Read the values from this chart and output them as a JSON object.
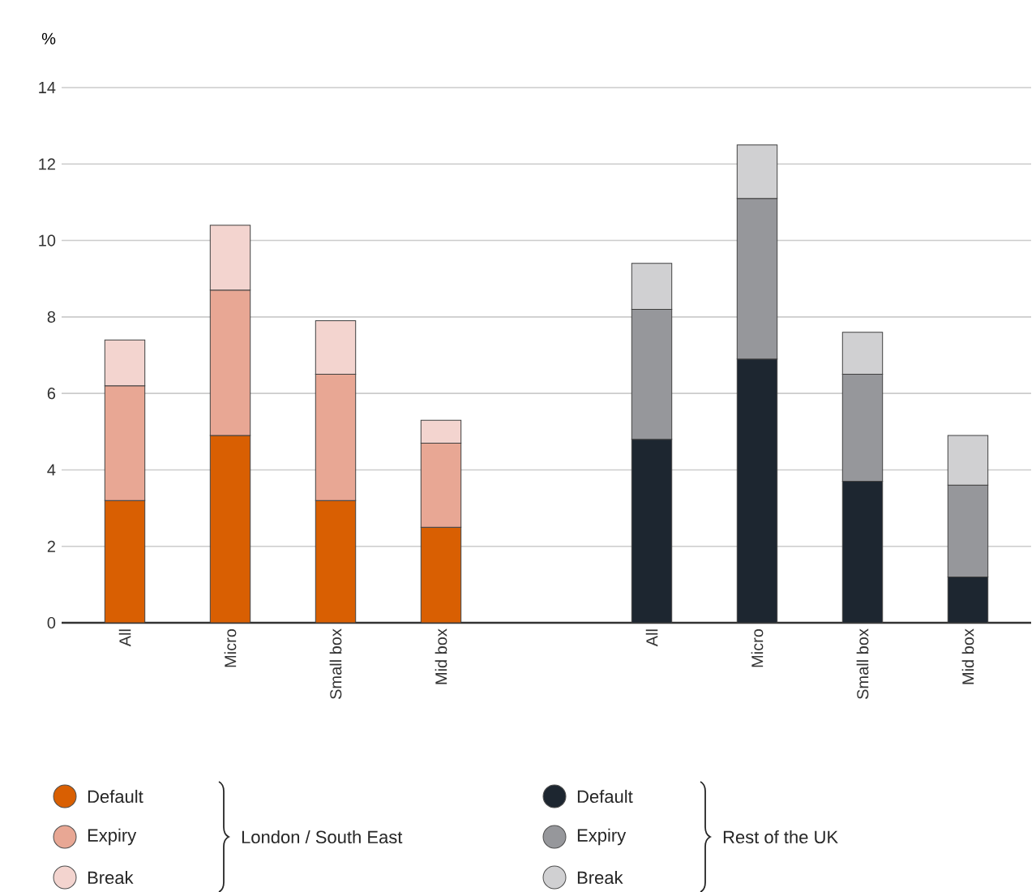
{
  "chart_data": {
    "type": "bar",
    "stacked": true,
    "ylabel": "%",
    "categories": [
      "All",
      "Micro",
      "Small box",
      "Mid box",
      null,
      "All",
      "Micro",
      "Small box",
      "Mid box"
    ],
    "series": [
      {
        "name": "Default",
        "color": "#d95f02",
        "values": [
          3.2,
          4.9,
          3.2,
          2.5,
          null,
          null,
          null,
          null,
          null
        ]
      },
      {
        "name": "Expiry",
        "color": "#e8a794",
        "values": [
          3.0,
          3.8,
          3.3,
          2.2,
          null,
          null,
          null,
          null,
          null
        ]
      },
      {
        "name": "Break",
        "color": "#f3d4cf",
        "values": [
          1.2,
          1.7,
          1.4,
          0.6,
          null,
          null,
          null,
          null,
          null
        ]
      },
      {
        "name": "Default",
        "color": "#1d2630",
        "values": [
          null,
          null,
          null,
          null,
          null,
          4.8,
          6.9,
          3.7,
          1.2
        ]
      },
      {
        "name": "Expiry",
        "color": "#96979b",
        "values": [
          null,
          null,
          null,
          null,
          null,
          3.4,
          4.2,
          2.8,
          2.4
        ]
      },
      {
        "name": "Break",
        "color": "#d0d0d2",
        "values": [
          null,
          null,
          null,
          null,
          null,
          1.2,
          1.4,
          1.1,
          1.3
        ]
      }
    ],
    "annotations": [
      "London / South East",
      "Rest of the UK"
    ],
    "ylim": [
      0,
      14
    ],
    "yticks": [
      0,
      2,
      4,
      6,
      8,
      10,
      12,
      14
    ],
    "grid": "y",
    "legend": "bottom"
  }
}
